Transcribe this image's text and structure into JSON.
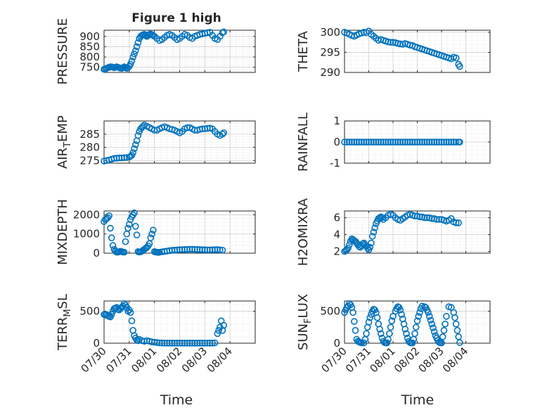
{
  "figure": {
    "title": "Figure 1 high",
    "xlabel": "Time",
    "x_tick_labels": [
      "07/30",
      "07/31",
      "08/01",
      "08/02",
      "08/03",
      "08/04"
    ],
    "marker_color": "#0072BD",
    "axes_color": "#262626",
    "grid_color": "#dddddd"
  },
  "chart_data": [
    {
      "type": "scatter",
      "ylabel": "PRESSURE",
      "ylim": [
        725,
        930
      ],
      "yticks": [
        750,
        800,
        850,
        900
      ],
      "xlim": [
        0,
        6
      ],
      "grid": true,
      "x": [
        0.0,
        0.05,
        0.1,
        0.15,
        0.2,
        0.25,
        0.3,
        0.35,
        0.4,
        0.45,
        0.5,
        0.55,
        0.6,
        0.65,
        0.7,
        0.75,
        0.8,
        0.85,
        0.9,
        0.95,
        1.0,
        1.05,
        1.1,
        1.15,
        1.2,
        1.25,
        1.3,
        1.35,
        1.4,
        1.45,
        1.5,
        1.55,
        1.6,
        1.65,
        1.7,
        1.75,
        1.8,
        1.85,
        1.9,
        1.95,
        2.0,
        2.1,
        2.2,
        2.3,
        2.4,
        2.5,
        2.6,
        2.7,
        2.8,
        2.9,
        3.0,
        3.1,
        3.2,
        3.3,
        3.4,
        3.5,
        3.6,
        3.7,
        3.8,
        3.9,
        4.0,
        4.1,
        4.2,
        4.3,
        4.4,
        4.5,
        4.6,
        4.7,
        4.75
      ],
      "y": [
        740,
        742,
        745,
        748,
        750,
        752,
        752,
        750,
        748,
        750,
        752,
        750,
        748,
        746,
        745,
        748,
        752,
        748,
        745,
        748,
        755,
        765,
        780,
        800,
        815,
        830,
        850,
        870,
        890,
        900,
        905,
        908,
        910,
        905,
        900,
        905,
        910,
        912,
        908,
        905,
        900,
        890,
        880,
        885,
        895,
        905,
        910,
        905,
        895,
        885,
        890,
        900,
        910,
        905,
        895,
        890,
        900,
        905,
        910,
        912,
        915,
        918,
        920,
        905,
        890,
        885,
        900,
        918,
        922
      ]
    },
    {
      "type": "scatter",
      "ylabel": "THETA",
      "ylim": [
        290,
        300.5
      ],
      "yticks": [
        290,
        295,
        300
      ],
      "xlim": [
        0,
        6
      ],
      "grid": true,
      "x": [
        0.0,
        0.1,
        0.2,
        0.3,
        0.4,
        0.5,
        0.6,
        0.7,
        0.8,
        0.9,
        1.0,
        1.1,
        1.2,
        1.3,
        1.4,
        1.5,
        1.6,
        1.7,
        1.8,
        1.9,
        2.0,
        2.1,
        2.2,
        2.3,
        2.4,
        2.5,
        2.6,
        2.7,
        2.8,
        2.9,
        3.0,
        3.1,
        3.2,
        3.3,
        3.4,
        3.5,
        3.6,
        3.7,
        3.8,
        3.9,
        4.0,
        4.1,
        4.2,
        4.3,
        4.4,
        4.5,
        4.6,
        4.7,
        4.75
      ],
      "y": [
        300.0,
        299.8,
        299.5,
        299.2,
        299.0,
        299.3,
        299.6,
        299.8,
        300.0,
        299.9,
        300.3,
        299.5,
        299.0,
        298.5,
        298.0,
        298.2,
        298.0,
        297.8,
        297.6,
        297.5,
        297.5,
        297.4,
        297.2,
        297.1,
        297.0,
        297.2,
        297.0,
        296.8,
        296.7,
        296.4,
        296.2,
        296.0,
        295.8,
        295.6,
        295.4,
        295.2,
        295.0,
        294.8,
        294.6,
        294.4,
        294.2,
        294.0,
        293.8,
        293.6,
        293.4,
        293.8,
        293.6,
        292.0,
        291.5
      ]
    },
    {
      "type": "scatter",
      "ylabel": "AIR_TEMP",
      "ylim": [
        274,
        290
      ],
      "yticks": [
        275,
        280,
        285
      ],
      "xlim": [
        0,
        6
      ],
      "grid": true,
      "x": [
        0.0,
        0.1,
        0.2,
        0.3,
        0.4,
        0.5,
        0.6,
        0.7,
        0.8,
        0.9,
        1.0,
        1.05,
        1.1,
        1.15,
        1.2,
        1.25,
        1.3,
        1.35,
        1.4,
        1.45,
        1.5,
        1.55,
        1.6,
        1.7,
        1.8,
        1.9,
        2.0,
        2.1,
        2.2,
        2.3,
        2.4,
        2.5,
        2.6,
        2.7,
        2.8,
        2.9,
        3.0,
        3.1,
        3.2,
        3.3,
        3.4,
        3.5,
        3.6,
        3.7,
        3.8,
        3.9,
        4.0,
        4.1,
        4.2,
        4.3,
        4.4,
        4.5,
        4.6,
        4.7,
        4.75
      ],
      "y": [
        274.8,
        275.0,
        275.2,
        275.5,
        275.8,
        275.9,
        276.0,
        276.0,
        276.1,
        276.1,
        276.3,
        276.6,
        277.0,
        278.0,
        279.5,
        281.0,
        282.5,
        284.5,
        286.0,
        287.0,
        287.5,
        288.0,
        288.5,
        288.0,
        287.5,
        287.0,
        286.5,
        286.5,
        287.0,
        287.5,
        287.8,
        287.5,
        287.0,
        286.8,
        286.5,
        286.0,
        285.5,
        286.0,
        287.0,
        287.5,
        287.5,
        287.0,
        286.5,
        286.5,
        286.8,
        287.0,
        287.0,
        287.2,
        287.3,
        287.0,
        286.0,
        285.0,
        284.5,
        285.0,
        285.5
      ]
    },
    {
      "type": "scatter",
      "ylabel": "RAINFALL",
      "ylim": [
        -1,
        1
      ],
      "yticks": [
        -1,
        0,
        1
      ],
      "xlim": [
        0,
        6
      ],
      "grid": true,
      "x": [
        0.0,
        0.1,
        0.2,
        0.3,
        0.4,
        0.5,
        0.6,
        0.7,
        0.8,
        0.9,
        1.0,
        1.1,
        1.2,
        1.3,
        1.4,
        1.5,
        1.6,
        1.7,
        1.8,
        1.9,
        2.0,
        2.1,
        2.2,
        2.3,
        2.4,
        2.5,
        2.6,
        2.7,
        2.8,
        2.9,
        3.0,
        3.1,
        3.2,
        3.3,
        3.4,
        3.5,
        3.6,
        3.7,
        3.8,
        3.9,
        4.0,
        4.1,
        4.2,
        4.3,
        4.4,
        4.5,
        4.6,
        4.7,
        4.75
      ],
      "y": [
        0,
        0,
        0,
        0,
        0,
        0,
        0,
        0,
        0,
        0,
        0,
        0,
        0,
        0,
        0,
        0,
        0,
        0,
        0,
        0,
        0,
        0,
        0,
        0,
        0,
        0,
        0,
        0,
        0,
        0,
        0,
        0,
        0,
        0,
        0,
        0,
        0,
        0,
        0,
        0,
        0,
        0,
        0,
        0,
        0,
        0,
        0,
        0,
        0
      ]
    },
    {
      "type": "scatter",
      "ylabel": "MIXDEPTH",
      "ylim": [
        0,
        2200
      ],
      "yticks": [
        0,
        1000,
        2000
      ],
      "xlim": [
        0,
        6
      ],
      "grid": true,
      "x": [
        0.0,
        0.05,
        0.1,
        0.15,
        0.2,
        0.25,
        0.3,
        0.35,
        0.4,
        0.45,
        0.5,
        0.55,
        0.6,
        0.65,
        0.7,
        0.75,
        0.8,
        0.85,
        0.9,
        0.95,
        1.0,
        1.05,
        1.1,
        1.15,
        1.2,
        1.25,
        1.3,
        1.35,
        1.4,
        1.45,
        1.5,
        1.55,
        1.6,
        1.65,
        1.7,
        1.75,
        1.8,
        1.85,
        1.9,
        1.95,
        2.0,
        2.05,
        2.1,
        2.15,
        2.2,
        2.3,
        2.4,
        2.5,
        2.6,
        2.7,
        2.8,
        2.9,
        3.0,
        3.1,
        3.2,
        3.3,
        3.4,
        3.5,
        3.6,
        3.7,
        3.8,
        3.9,
        4.0,
        4.1,
        4.2,
        4.3,
        4.4,
        4.5,
        4.6,
        4.7
      ],
      "y": [
        1650,
        1750,
        1800,
        1850,
        1950,
        1300,
        800,
        400,
        200,
        100,
        50,
        50,
        80,
        100,
        80,
        60,
        50,
        600,
        1000,
        1300,
        1500,
        1750,
        1900,
        2000,
        2100,
        1400,
        950,
        80,
        60,
        70,
        100,
        150,
        200,
        250,
        300,
        380,
        500,
        800,
        1000,
        1200,
        80,
        60,
        50,
        40,
        50,
        70,
        90,
        110,
        130,
        150,
        160,
        170,
        180,
        185,
        190,
        195,
        200,
        200,
        195,
        190,
        185,
        180,
        175,
        170,
        170,
        175,
        180,
        185,
        170,
        160
      ]
    },
    {
      "type": "scatter",
      "ylabel": "H2OMIXRA",
      "ylim": [
        1.8,
        6.8
      ],
      "yticks": [
        2,
        4,
        6
      ],
      "xlim": [
        0,
        6
      ],
      "grid": true,
      "x": [
        0.0,
        0.05,
        0.1,
        0.15,
        0.2,
        0.25,
        0.3,
        0.35,
        0.4,
        0.45,
        0.5,
        0.55,
        0.6,
        0.65,
        0.7,
        0.75,
        0.8,
        0.85,
        0.9,
        0.95,
        1.0,
        1.05,
        1.1,
        1.15,
        1.2,
        1.25,
        1.3,
        1.35,
        1.4,
        1.45,
        1.5,
        1.55,
        1.6,
        1.7,
        1.8,
        1.9,
        2.0,
        2.1,
        2.2,
        2.3,
        2.4,
        2.5,
        2.6,
        2.7,
        2.8,
        2.9,
        3.0,
        3.1,
        3.2,
        3.3,
        3.4,
        3.5,
        3.6,
        3.7,
        3.8,
        3.9,
        4.0,
        4.1,
        4.2,
        4.3,
        4.4,
        4.5,
        4.6,
        4.7
      ],
      "y": [
        2.0,
        2.1,
        2.2,
        2.4,
        2.8,
        3.2,
        3.5,
        3.4,
        3.3,
        3.2,
        3.0,
        2.8,
        2.6,
        2.5,
        2.7,
        2.9,
        3.0,
        2.8,
        2.6,
        2.4,
        2.2,
        2.5,
        3.0,
        3.8,
        4.3,
        4.8,
        5.3,
        5.6,
        5.9,
        6.0,
        6.1,
        6.0,
        5.8,
        6.0,
        6.3,
        6.4,
        6.3,
        6.0,
        5.8,
        5.7,
        5.9,
        6.1,
        6.3,
        6.4,
        6.3,
        6.2,
        6.2,
        6.1,
        6.1,
        6.0,
        6.0,
        6.0,
        5.9,
        5.9,
        5.8,
        5.8,
        5.8,
        5.7,
        5.6,
        5.7,
        5.9,
        5.5,
        5.4,
        5.4
      ]
    },
    {
      "type": "scatter",
      "ylabel": "TERR_MSL",
      "ylim": [
        0,
        660
      ],
      "yticks": [
        0,
        500
      ],
      "xlim": [
        0,
        6
      ],
      "grid": true,
      "x": [
        0.0,
        0.05,
        0.1,
        0.15,
        0.2,
        0.25,
        0.3,
        0.35,
        0.4,
        0.45,
        0.5,
        0.55,
        0.6,
        0.65,
        0.7,
        0.75,
        0.8,
        0.85,
        0.9,
        0.95,
        1.0,
        1.05,
        1.1,
        1.15,
        1.2,
        1.25,
        1.3,
        1.35,
        1.4,
        1.5,
        1.6,
        1.7,
        1.8,
        1.9,
        2.0,
        2.1,
        2.2,
        2.3,
        2.4,
        2.5,
        2.6,
        2.7,
        2.8,
        2.9,
        3.0,
        3.1,
        3.2,
        3.3,
        3.4,
        3.5,
        3.6,
        3.7,
        3.8,
        3.9,
        4.0,
        4.1,
        4.2,
        4.3,
        4.4,
        4.5,
        4.55,
        4.6,
        4.65,
        4.7,
        4.75
      ],
      "y": [
        450,
        440,
        445,
        430,
        420,
        410,
        450,
        500,
        540,
        550,
        560,
        530,
        520,
        540,
        560,
        580,
        620,
        600,
        560,
        500,
        520,
        480,
        350,
        200,
        120,
        80,
        50,
        40,
        60,
        40,
        30,
        40,
        30,
        20,
        15,
        10,
        5,
        3,
        2,
        2,
        2,
        2,
        2,
        2,
        2,
        2,
        2,
        2,
        2,
        2,
        2,
        2,
        2,
        2,
        2,
        2,
        2,
        2,
        5,
        150,
        200,
        250,
        350,
        200,
        280
      ]
    },
    {
      "type": "scatter",
      "ylabel": "SUN_FLUX",
      "ylim": [
        0,
        660
      ],
      "yticks": [
        0,
        500
      ],
      "xlim": [
        0,
        6
      ],
      "grid": true,
      "x": [
        0.0,
        0.05,
        0.1,
        0.15,
        0.2,
        0.25,
        0.3,
        0.35,
        0.4,
        0.45,
        0.5,
        0.55,
        0.6,
        0.65,
        0.7,
        0.8,
        0.85,
        0.9,
        0.95,
        1.0,
        1.05,
        1.1,
        1.15,
        1.2,
        1.25,
        1.3,
        1.35,
        1.4,
        1.45,
        1.5,
        1.55,
        1.6,
        1.65,
        1.7,
        1.75,
        1.8,
        1.85,
        1.9,
        1.95,
        2.0,
        2.1,
        2.15,
        2.2,
        2.25,
        2.3,
        2.35,
        2.4,
        2.45,
        2.5,
        2.55,
        2.6,
        2.65,
        2.7,
        2.75,
        2.8,
        2.85,
        2.9,
        2.95,
        3.0,
        3.05,
        3.1,
        3.15,
        3.2,
        3.3,
        3.35,
        3.4,
        3.45,
        3.5,
        3.55,
        3.6,
        3.65,
        3.7,
        3.75,
        3.8,
        3.85,
        3.9,
        3.95,
        4.0,
        4.05,
        4.1,
        4.15,
        4.2,
        4.3,
        4.4,
        4.5,
        4.55,
        4.6,
        4.65,
        4.7,
        4.75
      ],
      "y": [
        480,
        520,
        560,
        580,
        620,
        600,
        560,
        480,
        340,
        200,
        60,
        30,
        20,
        10,
        5,
        5,
        60,
        150,
        250,
        330,
        400,
        450,
        500,
        530,
        520,
        480,
        400,
        300,
        220,
        150,
        80,
        30,
        10,
        5,
        5,
        60,
        150,
        250,
        350,
        420,
        500,
        540,
        570,
        560,
        520,
        450,
        380,
        300,
        220,
        150,
        80,
        30,
        10,
        5,
        5,
        60,
        150,
        250,
        350,
        420,
        480,
        540,
        580,
        570,
        560,
        520,
        480,
        420,
        360,
        300,
        240,
        180,
        120,
        80,
        40,
        15,
        5,
        5,
        100,
        200,
        300,
        420,
        570,
        560,
        480,
        400,
        300,
        200,
        100,
        10
      ]
    }
  ]
}
